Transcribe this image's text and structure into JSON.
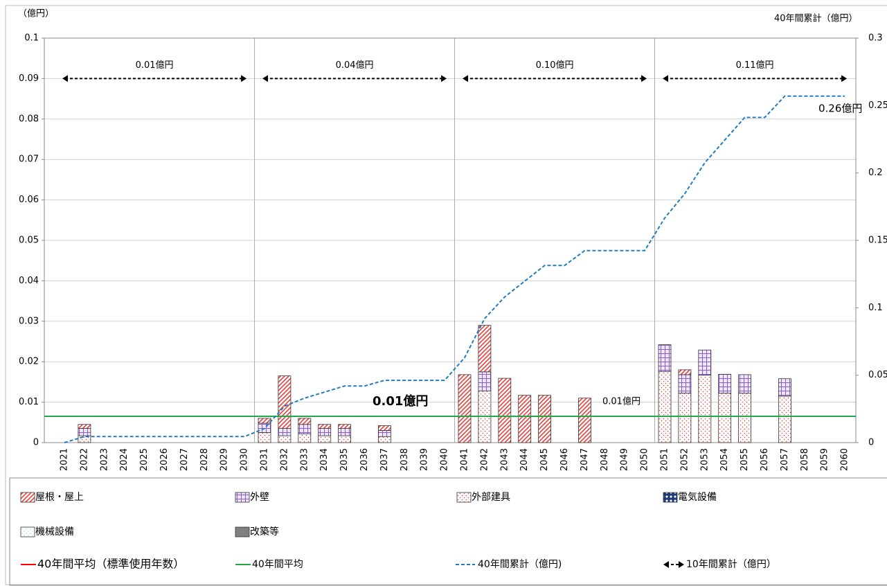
{
  "chart_data": {
    "type": "bar",
    "y_axis_label": "（億円）",
    "y2_axis_label": "40年間累計（億円）",
    "categories": [
      "2021",
      "2022",
      "2023",
      "2024",
      "2025",
      "2026",
      "2027",
      "2028",
      "2029",
      "2030",
      "2031",
      "2032",
      "2033",
      "2034",
      "2035",
      "2036",
      "2037",
      "2038",
      "2039",
      "2040",
      "2041",
      "2042",
      "2043",
      "2044",
      "2045",
      "2046",
      "2047",
      "2048",
      "2049",
      "2050",
      "2051",
      "2052",
      "2053",
      "2054",
      "2055",
      "2056",
      "2057",
      "2058",
      "2059",
      "2060"
    ],
    "series": [
      {
        "name": "屋根・屋上",
        "color": "#e8403a",
        "pattern": "diagonal",
        "values": [
          0,
          0.001,
          0,
          0,
          0,
          0,
          0,
          0,
          0,
          0,
          0.0012,
          0.013,
          0.0015,
          0.001,
          0.001,
          0,
          0.0012,
          0,
          0,
          0,
          0.0168,
          0.0115,
          0.0159,
          0.0117,
          0.0117,
          0,
          0.011,
          0,
          0,
          0,
          0,
          0.0012,
          0,
          0,
          0,
          0,
          0,
          0,
          0,
          0
        ]
      },
      {
        "name": "外壁",
        "color": "#8a5cc8",
        "pattern": "grid",
        "values": [
          0,
          0.0018,
          0,
          0,
          0,
          0,
          0,
          0,
          0,
          0,
          0.0023,
          0.0018,
          0.0023,
          0.0018,
          0.0018,
          0,
          0.0015,
          0,
          0,
          0,
          0,
          0.0047,
          0,
          0,
          0,
          0,
          0,
          0,
          0,
          0,
          0.0066,
          0.0046,
          0.0062,
          0.0047,
          0.0046,
          0,
          0.0043,
          0,
          0,
          0
        ]
      },
      {
        "name": "外部建具",
        "color": "#e8403a",
        "pattern": "dots",
        "values": [
          0,
          0.0017,
          0,
          0,
          0,
          0,
          0,
          0,
          0,
          0,
          0.0025,
          0.0017,
          0.0022,
          0.0017,
          0.0017,
          0,
          0.0015,
          0,
          0,
          0,
          0,
          0.0128,
          0,
          0,
          0,
          0,
          0,
          0,
          0,
          0,
          0.0176,
          0.0122,
          0.0167,
          0.0122,
          0.0122,
          0,
          0.0115,
          0,
          0,
          0
        ]
      },
      {
        "name": "電気設備",
        "color": "#1f3c7a",
        "pattern": "diamond",
        "values": [
          0,
          0,
          0,
          0,
          0,
          0,
          0,
          0,
          0,
          0,
          0,
          0,
          0,
          0,
          0,
          0,
          0,
          0,
          0,
          0,
          0,
          0,
          0,
          0,
          0,
          0,
          0,
          0,
          0,
          0,
          0,
          0,
          0,
          0,
          0,
          0,
          0,
          0,
          0,
          0
        ]
      },
      {
        "name": "機械設備",
        "color": "#7fb2d9",
        "pattern": "fine-dots",
        "values": [
          0,
          0,
          0,
          0,
          0,
          0,
          0,
          0,
          0,
          0,
          0,
          0,
          0,
          0,
          0,
          0,
          0,
          0,
          0,
          0,
          0,
          0,
          0,
          0,
          0,
          0,
          0,
          0,
          0,
          0,
          0,
          0,
          0,
          0,
          0,
          0,
          0,
          0,
          0,
          0
        ]
      },
      {
        "name": "改築等",
        "color": "#808080",
        "pattern": "solid",
        "values": [
          0,
          0,
          0,
          0,
          0,
          0,
          0,
          0,
          0,
          0,
          0,
          0,
          0,
          0,
          0,
          0,
          0,
          0,
          0,
          0,
          0,
          0,
          0,
          0,
          0,
          0,
          0,
          0,
          0,
          0,
          0,
          0,
          0,
          0,
          0,
          0,
          0,
          0,
          0,
          0
        ]
      }
    ],
    "average_lines": [
      {
        "name": "40年間平均（標準使用年数）",
        "color": "#ff0000",
        "value": 0.0065,
        "label": "0.01億円"
      },
      {
        "name": "40年間平均",
        "color": "#22a845",
        "value": 0.0065,
        "label": "0.01億円"
      }
    ],
    "cumulative": {
      "name": "40年間累計（億円)",
      "color": "#1f7bc4",
      "axis": "y2",
      "label": "0.26億円",
      "values": [
        0,
        0.0045,
        0.0045,
        0.0045,
        0.0045,
        0.0045,
        0.0045,
        0.0045,
        0.0045,
        0.0045,
        0.0105,
        0.027,
        0.033,
        0.0375,
        0.042,
        0.042,
        0.0462,
        0.0462,
        0.0462,
        0.0462,
        0.063,
        0.092,
        0.108,
        0.1197,
        0.1314,
        0.1314,
        0.1424,
        0.1424,
        0.1424,
        0.1424,
        0.1666,
        0.1846,
        0.2075,
        0.2244,
        0.2412,
        0.2412,
        0.257,
        0.257,
        0.257,
        0.257
      ]
    },
    "decades": {
      "name": "10年間累計（億円）",
      "labels": [
        "0.01億円",
        "0.04億円",
        "0.10億円",
        "0.11億円"
      ]
    },
    "ylim": [
      0,
      0.1
    ],
    "yticks": [
      0,
      0.01,
      0.02,
      0.03,
      0.04,
      0.05,
      0.06,
      0.07,
      0.08,
      0.09,
      0.1
    ],
    "y2lim": [
      0,
      0.3
    ],
    "y2ticks": [
      0,
      0.05,
      0.1,
      0.15,
      0.2,
      0.25,
      0.3
    ],
    "grid": true
  }
}
